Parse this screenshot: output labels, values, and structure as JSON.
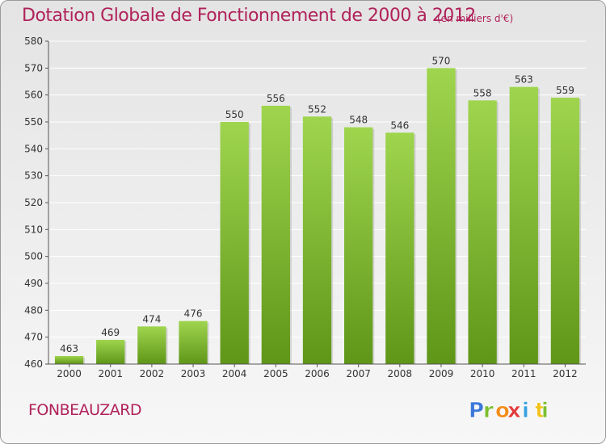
{
  "title": "Dotation Globale de Fonctionnement de 2000 à 2012",
  "subtitle": "(en milliers d'€)",
  "commune": "FONBEAUZARD",
  "logo": {
    "text": "Proxiti",
    "colors": [
      "#3c78d8",
      "#7cbf2e",
      "#f28c1a",
      "#e23c3c",
      "#3aa0e0",
      "#f2c21a",
      "#7cbf2e"
    ]
  },
  "colors": {
    "title": "#b0225a",
    "bar_light": "#9fd54e",
    "bar_dark": "#5f9618",
    "axis": "#555555",
    "grid": "#ffffff"
  },
  "chart_data": {
    "type": "bar",
    "categories": [
      "2000",
      "2001",
      "2002",
      "2003",
      "2004",
      "2005",
      "2006",
      "2007",
      "2008",
      "2009",
      "2010",
      "2011",
      "2012"
    ],
    "values": [
      463,
      469,
      474,
      476,
      550,
      556,
      552,
      548,
      546,
      570,
      558,
      563,
      559
    ],
    "yticks": [
      460,
      470,
      480,
      490,
      500,
      510,
      520,
      530,
      540,
      550,
      560,
      570,
      580
    ],
    "ylim": [
      460,
      580
    ],
    "grid": true,
    "legend": "none"
  }
}
